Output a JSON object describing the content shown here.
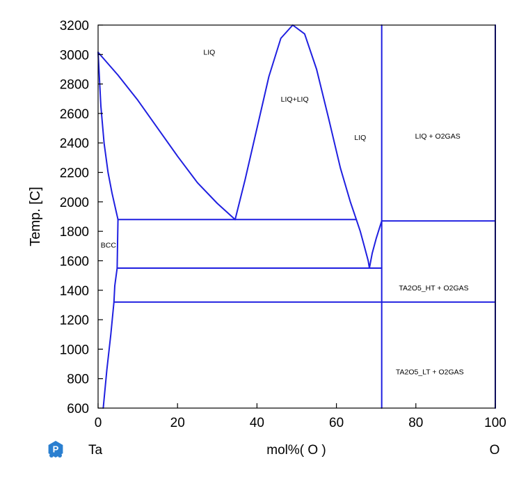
{
  "chart_data": {
    "type": "line",
    "title": "",
    "xlabel": "mol%( O )",
    "ylabel": "Temp. [C]",
    "xlim": [
      0,
      100
    ],
    "ylim": [
      600,
      3200
    ],
    "x_ticks": [
      0,
      20,
      40,
      60,
      80,
      100
    ],
    "y_ticks": [
      600,
      800,
      1000,
      1200,
      1400,
      1600,
      1800,
      2000,
      2200,
      2400,
      2600,
      2800,
      3000,
      3200
    ],
    "grid": false,
    "line_color": "#1f1fe0",
    "left_component": "Ta",
    "right_component": "O",
    "series": [
      {
        "id": "liquidus-left",
        "points": [
          [
            0,
            3015
          ],
          [
            5,
            2860
          ],
          [
            10,
            2690
          ],
          [
            15,
            2500
          ],
          [
            20,
            2310
          ],
          [
            25,
            2130
          ],
          [
            30,
            1990
          ],
          [
            34.5,
            1880
          ]
        ]
      },
      {
        "id": "bcc-solvus-upper",
        "points": [
          [
            0,
            3015
          ],
          [
            0.7,
            2650
          ],
          [
            1.5,
            2400
          ],
          [
            2.5,
            2200
          ],
          [
            3.5,
            2060
          ],
          [
            4.5,
            1940
          ],
          [
            5,
            1880
          ]
        ]
      },
      {
        "id": "bcc-solvus-lower",
        "points": [
          [
            5,
            1880
          ],
          [
            4.9,
            1720
          ],
          [
            4.8,
            1550
          ],
          [
            4.2,
            1430
          ],
          [
            4,
            1320
          ],
          [
            3.2,
            1100
          ],
          [
            2.2,
            860
          ],
          [
            1.3,
            600
          ]
        ]
      },
      {
        "id": "miscibility-gap",
        "points": [
          [
            34.5,
            1880
          ],
          [
            37,
            2150
          ],
          [
            40,
            2500
          ],
          [
            43,
            2850
          ],
          [
            46,
            3110
          ],
          [
            49,
            3200
          ],
          [
            52,
            3140
          ],
          [
            55,
            2900
          ],
          [
            58,
            2570
          ],
          [
            61,
            2230
          ],
          [
            63.5,
            2000
          ],
          [
            65,
            1880
          ]
        ]
      },
      {
        "id": "liquidus-right-low",
        "points": [
          [
            65,
            1880
          ],
          [
            66,
            1800
          ],
          [
            67,
            1700
          ],
          [
            68,
            1600
          ],
          [
            68.3,
            1550
          ]
        ]
      },
      {
        "id": "liquidus-right-high",
        "points": [
          [
            68.3,
            1550
          ],
          [
            69,
            1650
          ],
          [
            70,
            1750
          ],
          [
            71.4,
            1870
          ]
        ]
      },
      {
        "id": "monotectic-1880",
        "points": [
          [
            5,
            1880
          ],
          [
            65,
            1880
          ]
        ]
      },
      {
        "id": "eutectic-1550",
        "points": [
          [
            4.8,
            1550
          ],
          [
            71.4,
            1550
          ]
        ]
      },
      {
        "id": "transition-1320",
        "points": [
          [
            4,
            1320
          ],
          [
            100,
            1320
          ]
        ]
      },
      {
        "id": "ta2o5-boundary-1870",
        "points": [
          [
            71.4,
            1870
          ],
          [
            100,
            1870
          ]
        ]
      },
      {
        "id": "ta2o5-line",
        "points": [
          [
            71.4,
            600
          ],
          [
            71.4,
            3200
          ]
        ]
      },
      {
        "id": "o-line",
        "points": [
          [
            100,
            600
          ],
          [
            100,
            3200
          ]
        ]
      }
    ],
    "annotations": [
      {
        "text": "LIQ",
        "x": 28,
        "y": 3000
      },
      {
        "text": "LIQ+LIQ",
        "x": 49.5,
        "y": 2680
      },
      {
        "text": "LIQ",
        "x": 66,
        "y": 2420
      },
      {
        "text": "LIQ + O2GAS",
        "x": 85.5,
        "y": 2430
      },
      {
        "text": "BCC",
        "x": 2.6,
        "y": 1690
      },
      {
        "text": "TA2O5_HT + O2GAS",
        "x": 84.5,
        "y": 1400
      },
      {
        "text": "TA2O5_LT + O2GAS",
        "x": 83.5,
        "y": 830
      }
    ]
  }
}
